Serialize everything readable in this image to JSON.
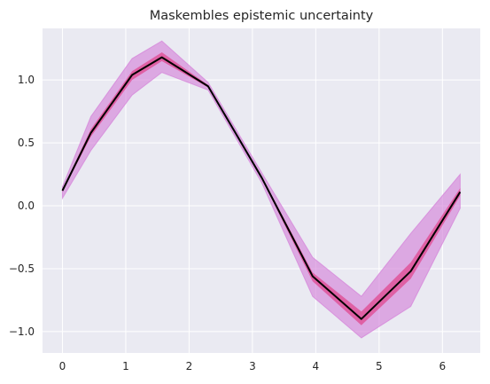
{
  "chart_data": {
    "type": "line",
    "title": "Maskembles epistemic uncertainty",
    "xlabel": "",
    "ylabel": "",
    "xlim": [
      -0.314,
      6.597
    ],
    "ylim": [
      -1.17,
      1.41
    ],
    "xticks": [
      0,
      1,
      2,
      3,
      4,
      5,
      6
    ],
    "yticks": [
      -1.0,
      -0.5,
      0.0,
      0.5,
      1.0
    ],
    "xtick_labels": [
      "0",
      "1",
      "2",
      "3",
      "4",
      "5",
      "6"
    ],
    "ytick_labels": [
      "−1.0",
      "−0.5",
      "0.0",
      "0.5",
      "1.0"
    ],
    "grid": true,
    "x": [
      0.0,
      0.45,
      1.1,
      1.57,
      2.3,
      3.15,
      3.95,
      4.72,
      5.5,
      6.28
    ],
    "mean": [
      0.12,
      0.58,
      1.04,
      1.18,
      0.95,
      0.22,
      -0.56,
      -0.9,
      -0.52,
      0.11
    ],
    "outer_band": {
      "upper": [
        0.15,
        0.71,
        1.17,
        1.31,
        0.98,
        0.26,
        -0.41,
        -0.72,
        -0.22,
        0.25
      ],
      "lower": [
        0.06,
        0.44,
        0.88,
        1.06,
        0.92,
        0.18,
        -0.72,
        -1.05,
        -0.8,
        -0.02
      ]
    },
    "inner_band": {
      "upper": [
        0.13,
        0.61,
        1.07,
        1.22,
        0.96,
        0.23,
        -0.53,
        -0.84,
        -0.45,
        0.14
      ],
      "lower": [
        0.11,
        0.55,
        1.0,
        1.15,
        0.94,
        0.21,
        -0.6,
        -0.95,
        -0.58,
        0.08
      ]
    },
    "colors": {
      "background": "#eaeaf2",
      "outer_band": "#d47fd8",
      "inner_band": "#e0488f",
      "mean_line": "#000000"
    }
  }
}
